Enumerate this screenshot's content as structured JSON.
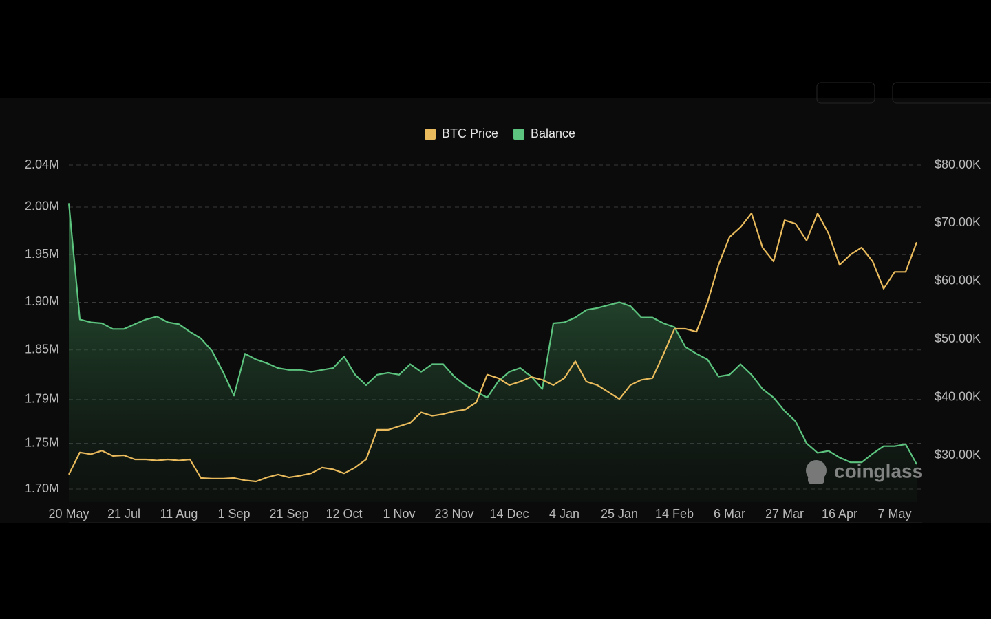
{
  "chart_data": {
    "type": "line",
    "categories": [
      "20 May",
      null,
      null,
      null,
      null,
      "21 Jul",
      null,
      null,
      null,
      null,
      "11 Aug",
      null,
      null,
      null,
      null,
      "1 Sep",
      null,
      null,
      null,
      null,
      "21 Sep",
      null,
      null,
      null,
      null,
      "12 Oct",
      null,
      null,
      null,
      null,
      "1 Nov",
      null,
      null,
      null,
      null,
      "23 Nov",
      null,
      null,
      null,
      null,
      "14 Dec",
      null,
      null,
      null,
      null,
      "4 Jan",
      null,
      null,
      null,
      null,
      "25 Jan",
      null,
      null,
      null,
      null,
      "14 Feb",
      null,
      null,
      null,
      null,
      "6 Mar",
      null,
      null,
      null,
      null,
      "27 Mar",
      null,
      null,
      null,
      null,
      "16 Apr",
      null,
      null,
      null,
      null,
      "7 May",
      null,
      null
    ],
    "series": [
      {
        "name": "BTC Price",
        "color": "#e9bb5c",
        "axis": "y2",
        "values": [
          26700,
          30500,
          30200,
          30800,
          29900,
          30000,
          29300,
          29300,
          29100,
          29300,
          29100,
          29300,
          26100,
          26000,
          26000,
          26100,
          25700,
          25500,
          26200,
          26700,
          26200,
          26500,
          26900,
          27900,
          27600,
          26900,
          27900,
          29300,
          34400,
          34400,
          35000,
          35600,
          37400,
          36800,
          37100,
          37600,
          37900,
          39100,
          43900,
          43300,
          42100,
          42700,
          43500,
          43000,
          42100,
          43300,
          46200,
          42700,
          42100,
          40900,
          39700,
          42100,
          43000,
          43300,
          47400,
          51800,
          51800,
          51300,
          56300,
          62800,
          67600,
          69300,
          71700,
          65800,
          63400,
          70500,
          69900,
          67000,
          71700,
          68200,
          62800,
          64600,
          65800,
          63400,
          58700,
          61600,
          61600,
          66700
        ]
      },
      {
        "name": "Balance",
        "color": "#5cc47f",
        "axis": "y",
        "values": [
          2000000,
          1878000,
          1875000,
          1874000,
          1868000,
          1868000,
          1873000,
          1878000,
          1881000,
          1875000,
          1873000,
          1865000,
          1858000,
          1845000,
          1823000,
          1798000,
          1842000,
          1836000,
          1832000,
          1827000,
          1825000,
          1825000,
          1823000,
          1825000,
          1827000,
          1839000,
          1820000,
          1809000,
          1820000,
          1822000,
          1820000,
          1831000,
          1823000,
          1831000,
          1831000,
          1818000,
          1809000,
          1802000,
          1796000,
          1813000,
          1823000,
          1827000,
          1818000,
          1805000,
          1874000,
          1875000,
          1880000,
          1888000,
          1890000,
          1893000,
          1896000,
          1892000,
          1880000,
          1880000,
          1874000,
          1870000,
          1849000,
          1842000,
          1836000,
          1818000,
          1820000,
          1831000,
          1820000,
          1805000,
          1796000,
          1782000,
          1771000,
          1748000,
          1738000,
          1740000,
          1733000,
          1728000,
          1728000,
          1737000,
          1745000,
          1745000,
          1747000,
          1726000
        ]
      }
    ],
    "ylim": [
      1700000,
      2040000
    ],
    "yticks": [
      {
        "value": 1700000,
        "label": "1.70M"
      },
      {
        "value": 1748000,
        "label": "1.75M"
      },
      {
        "value": 1794000,
        "label": "1.79M"
      },
      {
        "value": 1846000,
        "label": "1.85M"
      },
      {
        "value": 1896000,
        "label": "1.90M"
      },
      {
        "value": 1946000,
        "label": "1.95M"
      },
      {
        "value": 1996000,
        "label": "2.00M"
      },
      {
        "value": 2040000,
        "label": "2.04M"
      }
    ],
    "y2lim": [
      24200,
      80000
    ],
    "y2ticks": [
      {
        "value": 30000,
        "label": "$30.00K"
      },
      {
        "value": 40000,
        "label": "$40.00K"
      },
      {
        "value": 50000,
        "label": "$50.00K"
      },
      {
        "value": 60000,
        "label": "$60.00K"
      },
      {
        "value": 70000,
        "label": "$70.00K"
      },
      {
        "value": 80000,
        "label": "$80.00K"
      }
    ],
    "grid": true,
    "legend": "top",
    "watermark": "coinglass"
  }
}
